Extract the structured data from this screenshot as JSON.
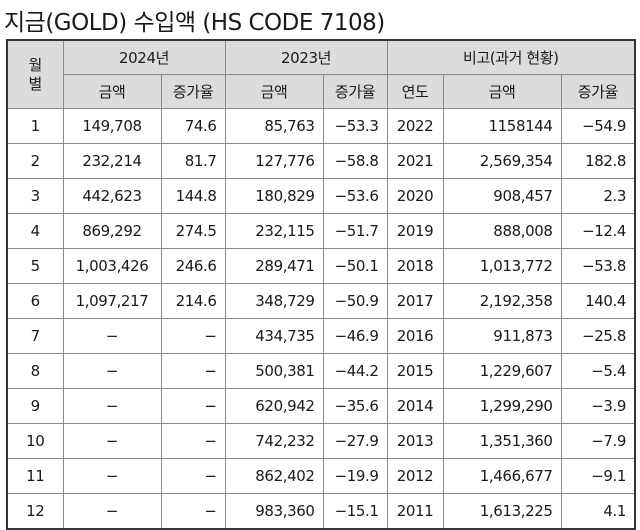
{
  "title": "지금(GOLD) 수입액 (HS CODE 7108)",
  "headers": {
    "month_line1": "월",
    "month_line2": "별",
    "year_2024": "2024년",
    "year_2023": "2023년",
    "comparison": "비고(과거 현황)",
    "amount_2024": "금액",
    "growth_2024": "증가율",
    "amount_2023": "금액",
    "growth_2023": "증가율",
    "year_col": "연도",
    "amount_past": "금액",
    "growth_past": "증가율"
  },
  "rows": [
    {
      "month": "1",
      "a2024": "149,708",
      "g2024": "74.6",
      "a2023": "85,763",
      "g2023": "−53.3",
      "year": "2022",
      "apast": "1158144",
      "gpast": "−54.9"
    },
    {
      "month": "2",
      "a2024": "232,214",
      "g2024": "81.7",
      "a2023": "127,776",
      "g2023": "−58.8",
      "year": "2021",
      "apast": "2,569,354",
      "gpast": "182.8"
    },
    {
      "month": "3",
      "a2024": "442,623",
      "g2024": "144.8",
      "a2023": "180,829",
      "g2023": "−53.6",
      "year": "2020",
      "apast": "908,457",
      "gpast": "2.3"
    },
    {
      "month": "4",
      "a2024": "869,292",
      "g2024": "274.5",
      "a2023": "232,115",
      "g2023": "−51.7",
      "year": "2019",
      "apast": "888,008",
      "gpast": "−12.4"
    },
    {
      "month": "5",
      "a2024": "1,003,426",
      "g2024": "246.6",
      "a2023": "289,471",
      "g2023": "−50.1",
      "year": "2018",
      "apast": "1,013,772",
      "gpast": "−53.8"
    },
    {
      "month": "6",
      "a2024": "1,097,217",
      "g2024": "214.6",
      "a2023": "348,729",
      "g2023": "−50.9",
      "year": "2017",
      "apast": "2,192,358",
      "gpast": "140.4"
    },
    {
      "month": "7",
      "a2024": "−",
      "g2024": "−",
      "a2023": "434,735",
      "g2023": "−46.9",
      "year": "2016",
      "apast": "911,873",
      "gpast": "−25.8"
    },
    {
      "month": "8",
      "a2024": "−",
      "g2024": "−",
      "a2023": "500,381",
      "g2023": "−44.2",
      "year": "2015",
      "apast": "1,229,607",
      "gpast": "−5.4"
    },
    {
      "month": "9",
      "a2024": "−",
      "g2024": "−",
      "a2023": "620,942",
      "g2023": "−35.6",
      "year": "2014",
      "apast": "1,299,290",
      "gpast": "−3.9"
    },
    {
      "month": "10",
      "a2024": "−",
      "g2024": "−",
      "a2023": "742,232",
      "g2023": "−27.9",
      "year": "2013",
      "apast": "1,351,360",
      "gpast": "−7.9"
    },
    {
      "month": "11",
      "a2024": "−",
      "g2024": "−",
      "a2023": "862,402",
      "g2023": "−19.9",
      "year": "2012",
      "apast": "1,466,677",
      "gpast": "−9.1"
    },
    {
      "month": "12",
      "a2024": "−",
      "g2024": "−",
      "a2023": "983,360",
      "g2023": "−15.1",
      "year": "2011",
      "apast": "1,613,225",
      "gpast": "4.1"
    }
  ]
}
